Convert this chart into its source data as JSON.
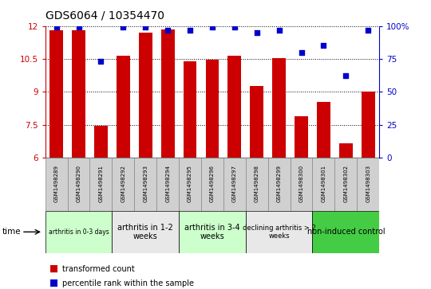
{
  "title": "GDS6064 / 10354470",
  "samples": [
    "GSM1498289",
    "GSM1498290",
    "GSM1498291",
    "GSM1498292",
    "GSM1498293",
    "GSM1498294",
    "GSM1498295",
    "GSM1498296",
    "GSM1498297",
    "GSM1498298",
    "GSM1498299",
    "GSM1498300",
    "GSM1498301",
    "GSM1498302",
    "GSM1498303"
  ],
  "bar_values": [
    11.8,
    11.8,
    7.45,
    10.65,
    11.7,
    11.85,
    10.4,
    10.45,
    10.65,
    9.25,
    10.55,
    7.9,
    8.55,
    6.65,
    9.0
  ],
  "dot_values": [
    99,
    99,
    73,
    99,
    99,
    97,
    97,
    99,
    99,
    95,
    97,
    80,
    85,
    62,
    97
  ],
  "bar_color": "#CC0000",
  "dot_color": "#0000CC",
  "ylim_left": [
    6,
    12
  ],
  "ylim_right": [
    0,
    100
  ],
  "yticks_left": [
    6,
    7.5,
    9,
    10.5,
    12
  ],
  "yticks_right": [
    0,
    25,
    50,
    75,
    100
  ],
  "groups": [
    {
      "label": "arthritis in 0-3 days",
      "start": 0,
      "end": 3,
      "color": "#ccffcc",
      "fontsize": 5.5
    },
    {
      "label": "arthritis in 1-2\nweeks",
      "start": 3,
      "end": 6,
      "color": "#e8e8e8",
      "fontsize": 7
    },
    {
      "label": "arthritis in 3-4\nweeks",
      "start": 6,
      "end": 9,
      "color": "#ccffcc",
      "fontsize": 7
    },
    {
      "label": "declining arthritis > 2\nweeks",
      "start": 9,
      "end": 12,
      "color": "#e8e8e8",
      "fontsize": 6
    },
    {
      "label": "non-induced control",
      "start": 12,
      "end": 15,
      "color": "#44cc44",
      "fontsize": 7
    }
  ],
  "sample_box_color": "#d0d0d0",
  "sample_box_edge": "#888888"
}
